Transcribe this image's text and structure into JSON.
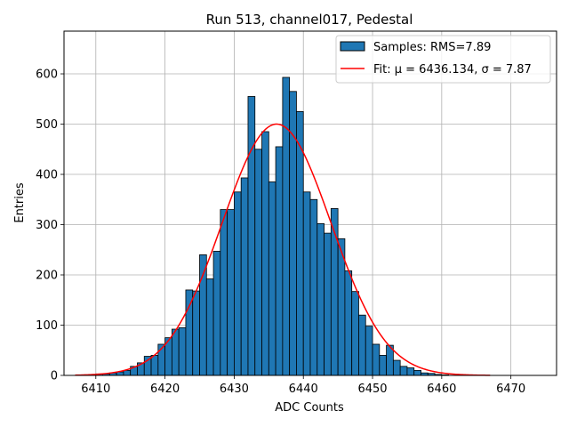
{
  "chart_data": {
    "type": "bar",
    "title": "Run 513, channel017, Pedestal",
    "xlabel": "ADC Counts",
    "ylabel": "Entries",
    "xlim": [
      6405.4,
      6476.6
    ],
    "ylim": [
      0,
      685
    ],
    "x_ticks": [
      6410,
      6420,
      6430,
      6440,
      6450,
      6460,
      6470
    ],
    "y_ticks": [
      0,
      100,
      200,
      300,
      400,
      500,
      600
    ],
    "grid": true,
    "legend_position": "top-right",
    "bin_width": 1,
    "bin_starts": [
      6409,
      6410,
      6411,
      6412,
      6413,
      6414,
      6415,
      6416,
      6417,
      6418,
      6419,
      6420,
      6421,
      6422,
      6423,
      6424,
      6425,
      6426,
      6427,
      6428,
      6429,
      6430,
      6431,
      6432,
      6433,
      6434,
      6435,
      6436,
      6437,
      6438,
      6439,
      6440,
      6441,
      6442,
      6443,
      6444,
      6445,
      6446,
      6447,
      6448,
      6449,
      6450,
      6451,
      6452,
      6453,
      6454,
      6455,
      6456,
      6457,
      6458,
      6459,
      6460
    ],
    "series": [
      {
        "name": "Samples: RMS=7.89",
        "kind": "histogram",
        "color": "#1f77b4",
        "edge_color": "#000000",
        "values": [
          2,
          3,
          3,
          5,
          7,
          10,
          18,
          25,
          38,
          40,
          62,
          75,
          92,
          95,
          170,
          168,
          240,
          192,
          247,
          330,
          330,
          365,
          393,
          555,
          450,
          485,
          385,
          455,
          593,
          565,
          525,
          365,
          350,
          302,
          283,
          332,
          272,
          208,
          167,
          120,
          98,
          62,
          40,
          60,
          30,
          18,
          15,
          10,
          5,
          4,
          2,
          1
        ]
      },
      {
        "name": "Fit: μ = 6436.134, σ = 7.87",
        "kind": "line",
        "color": "#ff0000",
        "model": "gaussian",
        "mu": 6436.134,
        "sigma": 7.87,
        "amplitude": 500,
        "x_range": [
          6407,
          6467
        ]
      }
    ]
  }
}
